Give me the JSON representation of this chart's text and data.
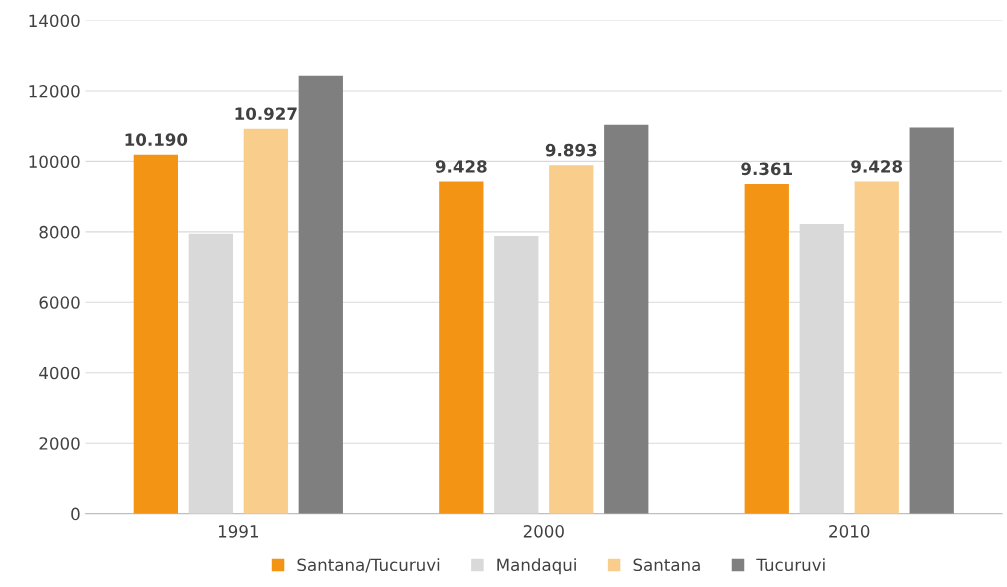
{
  "chart_data": {
    "type": "bar",
    "categories": [
      "1991",
      "2000",
      "2010"
    ],
    "series": [
      {
        "name": "Santana/Tucuruvi",
        "color": "#f39414",
        "values": [
          10190,
          9428,
          9361
        ],
        "value_labels": [
          "10.190",
          "9.428",
          "9.361"
        ]
      },
      {
        "name": "Mandaqui",
        "color": "#d9d9d9",
        "values": [
          7950,
          7880,
          8220
        ]
      },
      {
        "name": "Santana",
        "color": "#f9cd8c",
        "values": [
          10927,
          9893,
          9428
        ],
        "value_labels": [
          "10.927",
          "9.893",
          "9.428"
        ]
      },
      {
        "name": "Tucuruvi",
        "color": "#7f7f7f",
        "values": [
          12430,
          11040,
          10960
        ]
      }
    ],
    "ylim": [
      0,
      14000
    ],
    "yticks": [
      0,
      2000,
      4000,
      6000,
      8000,
      10000,
      12000,
      14000
    ],
    "grid": "y",
    "legend": "bottom"
  }
}
